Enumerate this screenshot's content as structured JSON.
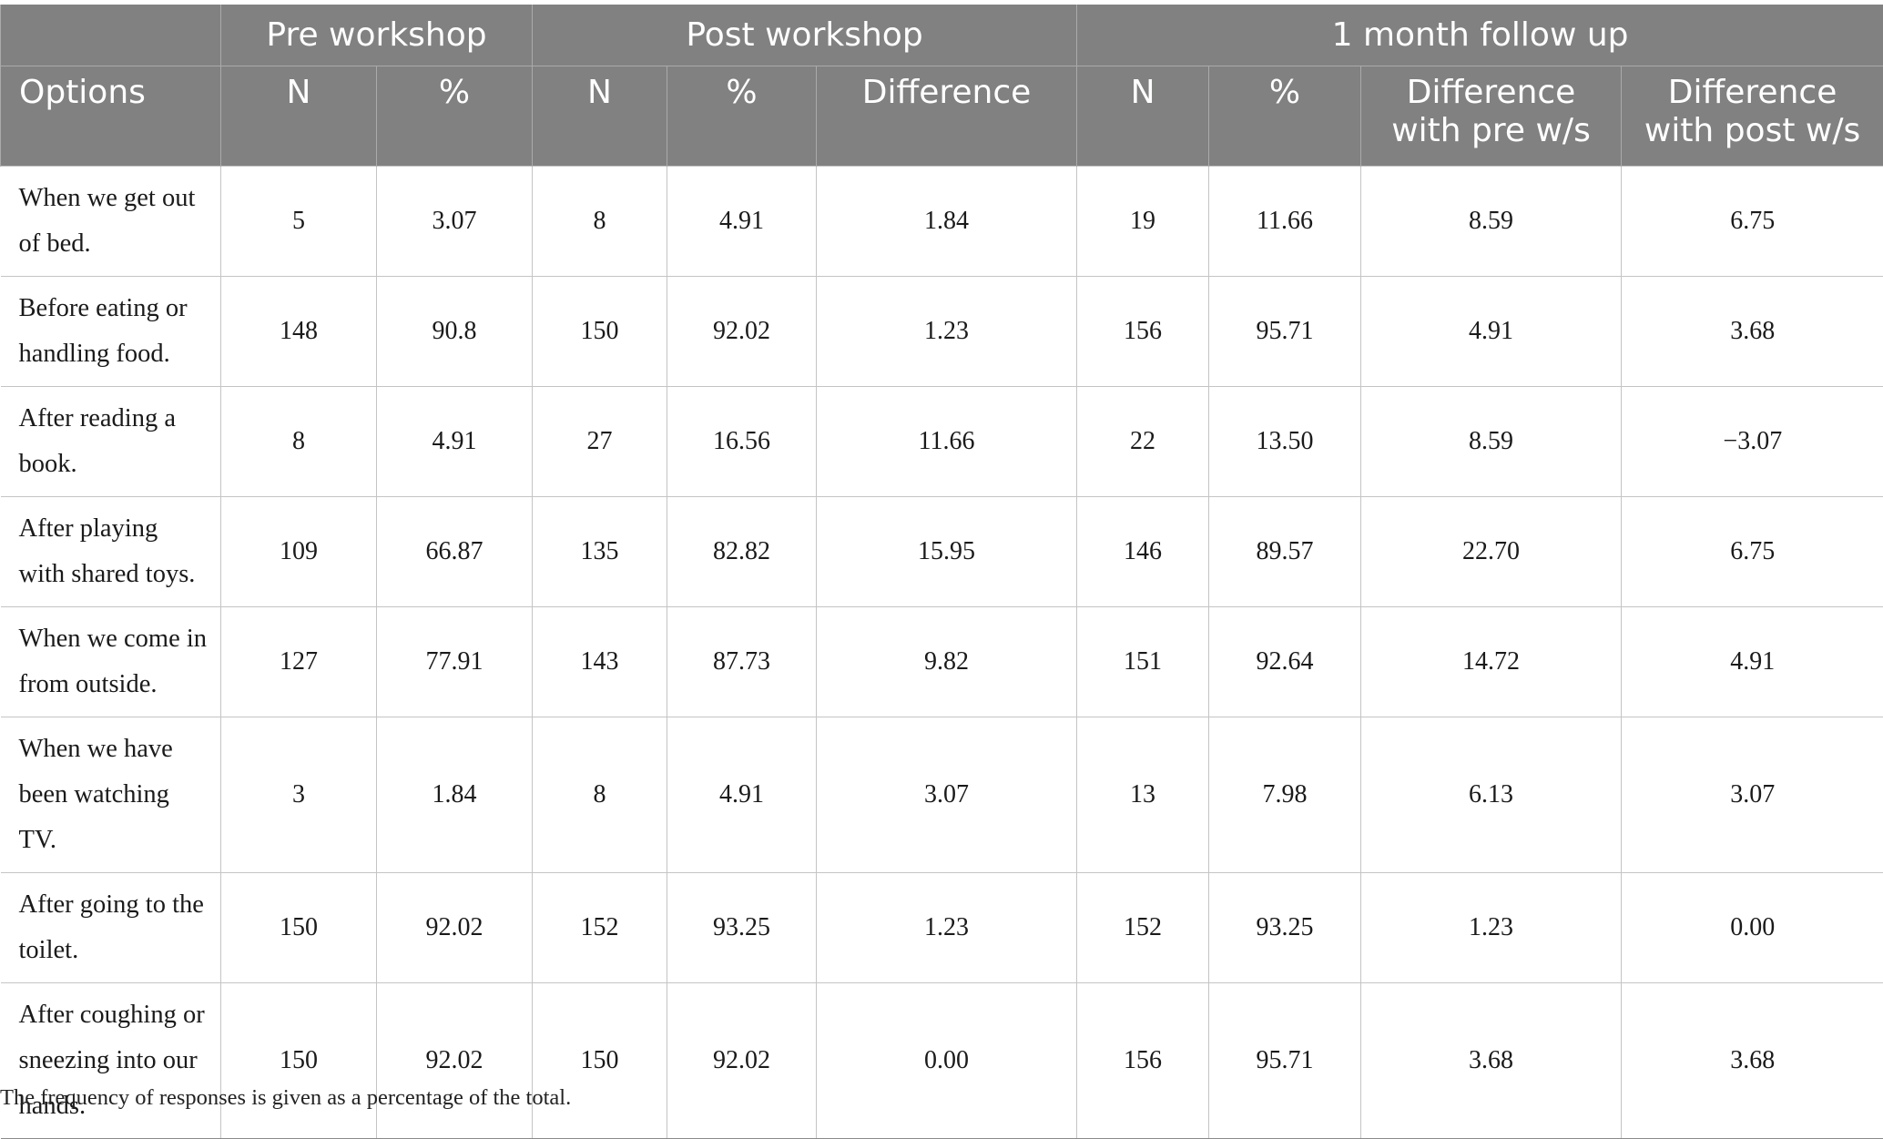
{
  "table": {
    "group_headers": {
      "pre": "Pre workshop",
      "post": "Post workshop",
      "followup": "1 month follow up"
    },
    "columns": {
      "options": "Options",
      "pre_n": "N",
      "pre_pct": "%",
      "post_n": "N",
      "post_pct": "%",
      "post_diff": "Difference",
      "fu_n": "N",
      "fu_pct": "%",
      "fu_diff_pre": "Difference with pre w/s",
      "fu_diff_post": "Difference with post w/s"
    },
    "rows": [
      {
        "option": "When we get out of bed.",
        "pre_n": "5",
        "pre_pct": "3.07",
        "post_n": "8",
        "post_pct": "4.91",
        "post_diff": "1.84",
        "fu_n": "19",
        "fu_pct": "11.66",
        "fu_diff_pre": "8.59",
        "fu_diff_post": "6.75"
      },
      {
        "option": "Before eating or handling food.",
        "pre_n": "148",
        "pre_pct": "90.8",
        "post_n": "150",
        "post_pct": "92.02",
        "post_diff": "1.23",
        "fu_n": "156",
        "fu_pct": "95.71",
        "fu_diff_pre": "4.91",
        "fu_diff_post": "3.68"
      },
      {
        "option": "After reading a book.",
        "pre_n": "8",
        "pre_pct": "4.91",
        "post_n": "27",
        "post_pct": "16.56",
        "post_diff": "11.66",
        "fu_n": "22",
        "fu_pct": "13.50",
        "fu_diff_pre": "8.59",
        "fu_diff_post": "−3.07"
      },
      {
        "option": "After playing with shared toys.",
        "pre_n": "109",
        "pre_pct": "66.87",
        "post_n": "135",
        "post_pct": "82.82",
        "post_diff": "15.95",
        "fu_n": "146",
        "fu_pct": "89.57",
        "fu_diff_pre": "22.70",
        "fu_diff_post": "6.75"
      },
      {
        "option": "When we come in from outside.",
        "pre_n": "127",
        "pre_pct": "77.91",
        "post_n": "143",
        "post_pct": "87.73",
        "post_diff": "9.82",
        "fu_n": "151",
        "fu_pct": "92.64",
        "fu_diff_pre": "14.72",
        "fu_diff_post": "4.91"
      },
      {
        "option": "When we have been watching TV.",
        "pre_n": "3",
        "pre_pct": "1.84",
        "post_n": "8",
        "post_pct": "4.91",
        "post_diff": "3.07",
        "fu_n": "13",
        "fu_pct": "7.98",
        "fu_diff_pre": "6.13",
        "fu_diff_post": "3.07"
      },
      {
        "option": "After going to the toilet.",
        "pre_n": "150",
        "pre_pct": "92.02",
        "post_n": "152",
        "post_pct": "93.25",
        "post_diff": "1.23",
        "fu_n": "152",
        "fu_pct": "93.25",
        "fu_diff_pre": "1.23",
        "fu_diff_post": "0.00"
      },
      {
        "option": "After coughing or sneezing into our hands.",
        "pre_n": "150",
        "pre_pct": "92.02",
        "post_n": "150",
        "post_pct": "92.02",
        "post_diff": "0.00",
        "fu_n": "156",
        "fu_pct": "95.71",
        "fu_diff_pre": "3.68",
        "fu_diff_post": "3.68"
      }
    ]
  },
  "footnote": "The frequency of responses is given as a percentage of the total."
}
